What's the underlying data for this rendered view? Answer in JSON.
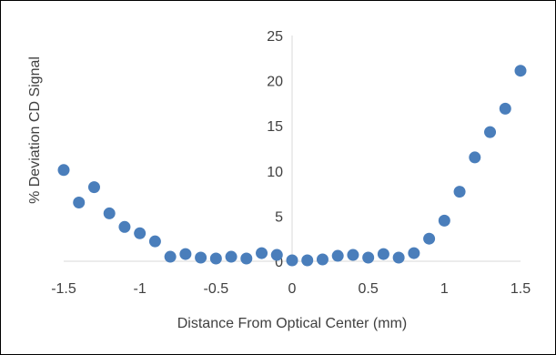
{
  "chart_data": {
    "type": "scatter",
    "title": "",
    "xlabel": "Distance From Optical Center (mm)",
    "ylabel": "% Deviation CD Signal",
    "xlim": [
      -1.5,
      1.5
    ],
    "ylim": [
      0,
      25
    ],
    "x_ticks": [
      -1.5,
      -1,
      -0.5,
      0,
      0.5,
      1,
      1.5
    ],
    "x_tick_labels": [
      "-1.5",
      "-1",
      "-0.5",
      "0",
      "0.5",
      "1",
      "1.5"
    ],
    "y_ticks": [
      0,
      5,
      10,
      15,
      20,
      25
    ],
    "y_tick_labels": [
      "0",
      "5",
      "10",
      "15",
      "20",
      "25"
    ],
    "grid": false,
    "legend": "none",
    "marker_color": "#4a7ebb",
    "series": [
      {
        "x": [
          -1.5,
          -1.4,
          -1.3,
          -1.2,
          -1.1,
          -1.0,
          -0.9,
          -0.8,
          -0.7,
          -0.6,
          -0.5,
          -0.4,
          -0.3,
          -0.2,
          -0.1,
          0.0,
          0.1,
          0.2,
          0.3,
          0.4,
          0.5,
          0.6,
          0.7,
          0.8,
          0.9,
          1.0,
          1.1,
          1.2,
          1.3,
          1.4,
          1.5
        ],
        "y": [
          10.1,
          6.5,
          8.2,
          5.3,
          3.8,
          3.1,
          2.2,
          0.5,
          0.8,
          0.4,
          0.3,
          0.5,
          0.3,
          0.9,
          0.7,
          0.1,
          0.1,
          0.2,
          0.6,
          0.7,
          0.4,
          0.8,
          0.4,
          0.9,
          2.5,
          4.5,
          7.7,
          11.5,
          14.3,
          16.9,
          21.1
        ]
      }
    ]
  }
}
